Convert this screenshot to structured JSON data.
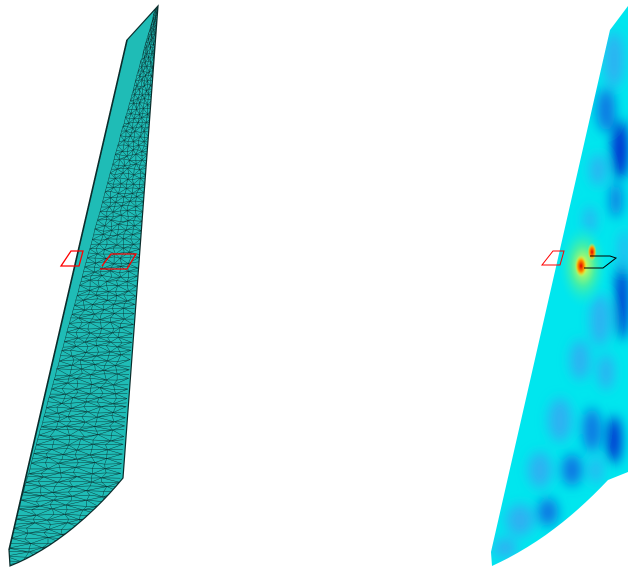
{
  "panels": {
    "left": {
      "kind": "wireframe-mesh",
      "surface_fill": "#1fbcb6",
      "mesh_line_color": "#0a2d2c",
      "marker_outline_color": "#ff0000"
    },
    "right": {
      "kind": "colormap-surface",
      "colormap": "jet",
      "colors": {
        "base_cyan": "#00e6ee",
        "light_blue": "#36a8f2",
        "blue": "#0c5fe0",
        "deep_blue": "#0000c8",
        "green": "#4cf0a0",
        "yellow": "#f0ff40",
        "orange": "#ff9a00",
        "red": "#e00000"
      },
      "marker_outline_colors": [
        "#ff0000",
        "#000000"
      ]
    }
  }
}
